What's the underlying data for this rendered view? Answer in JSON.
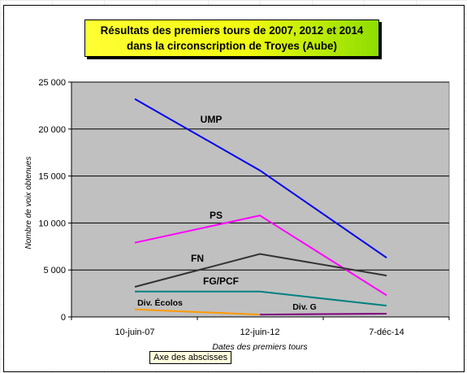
{
  "title_line1": "Résultats des premiers tours de 2007, 2012 et 2014",
  "title_line2": "dans la circonscription de Troyes (Aube)",
  "tooltip": "Axe des abscisses",
  "colors": {
    "plot_bg": "#c0c0c0",
    "UMP": "#0000ee",
    "PS": "#ff00ff",
    "FN": "#333333",
    "FG/PCF": "#008080",
    "Div. Écolos": "#ff9900",
    "Div. G": "#800080"
  },
  "chart_data": {
    "type": "line",
    "categories": [
      "10-juin-07",
      "12-juin-12",
      "7-déc-14"
    ],
    "xlabel": "Dates des premiers tours",
    "ylabel": "Nombre de voix obtenues",
    "ylim": [
      0,
      25000
    ],
    "yticks": [
      0,
      5000,
      10000,
      15000,
      20000,
      25000
    ],
    "ytick_labels": [
      "0",
      "5 000",
      "10 000",
      "15 000",
      "20 000",
      "25 000"
    ],
    "grid": true,
    "series": [
      {
        "name": "UMP",
        "values": [
          23200,
          15600,
          6300
        ]
      },
      {
        "name": "PS",
        "values": [
          7900,
          10800,
          2300
        ]
      },
      {
        "name": "FN",
        "values": [
          3200,
          6700,
          4400
        ]
      },
      {
        "name": "FG/PCF",
        "values": [
          2700,
          2700,
          1200
        ]
      },
      {
        "name": "Div. Écolos",
        "values": [
          800,
          250,
          null
        ]
      },
      {
        "name": "Div. G",
        "values": [
          null,
          250,
          350
        ]
      }
    ]
  }
}
